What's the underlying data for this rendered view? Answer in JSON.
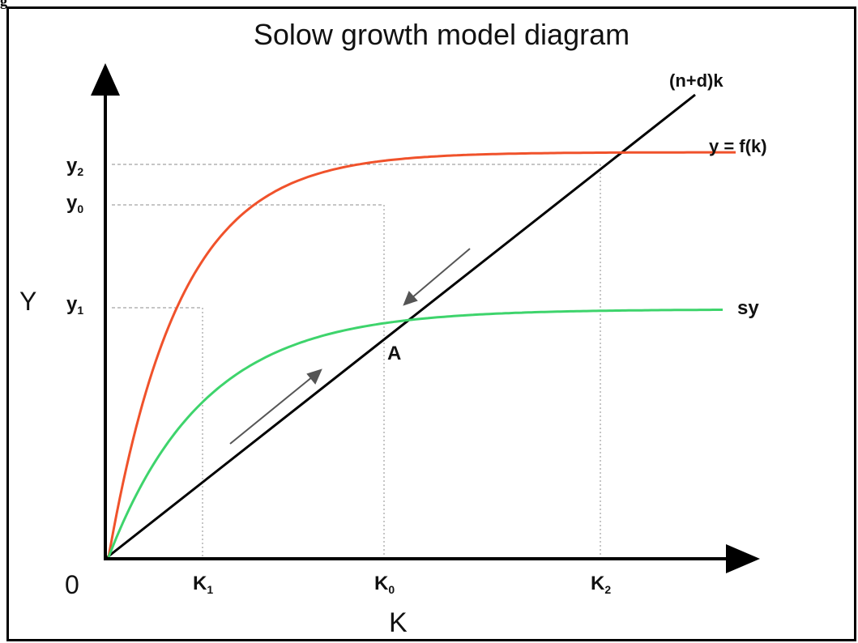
{
  "corner_label": "g",
  "title": "Solow growth model diagram",
  "axes": {
    "y_label": "Y",
    "x_label": "K",
    "origin": "0"
  },
  "curves": {
    "depreciation_line": "(n+d)k",
    "production": "y = f(k)",
    "savings": "sy"
  },
  "y_ticks": [
    {
      "base": "y",
      "sub": "2"
    },
    {
      "base": "y",
      "sub": "0"
    },
    {
      "base": "y",
      "sub": "1"
    }
  ],
  "x_ticks": [
    {
      "base": "K",
      "sub": "1"
    },
    {
      "base": "K",
      "sub": "0"
    },
    {
      "base": "K",
      "sub": "2"
    }
  ],
  "steady_state_label": "A",
  "colors": {
    "production": "#f0522b",
    "savings": "#3ed46c",
    "line": "#000000",
    "guides": "#8c8c8c",
    "arrows": "#555555"
  }
}
